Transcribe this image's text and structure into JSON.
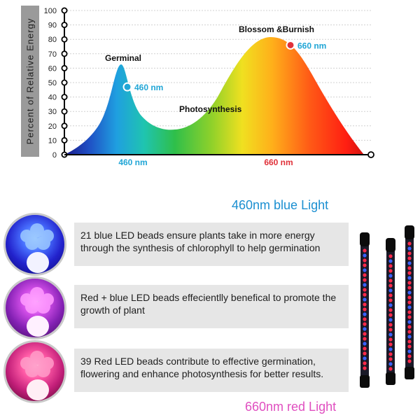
{
  "chart_data": {
    "type": "area",
    "ylabel": "Percent of Relative Energy",
    "yticks": [
      0,
      10,
      20,
      30,
      40,
      50,
      60,
      70,
      80,
      90,
      100
    ],
    "ylim": [
      0,
      100
    ],
    "xticks": [
      "460 nm",
      "660 nm"
    ],
    "points": [
      {
        "label": "460 nm",
        "value": 47,
        "color": "#21a6d6"
      },
      {
        "label": "660 nm",
        "value": 76,
        "color": "#e0323a"
      }
    ],
    "peaks": [
      {
        "name": "Germinal",
        "value": 62
      },
      {
        "name": "Photosynthesis",
        "value": 18
      },
      {
        "name": "Blossom &Burnish",
        "value": 82
      }
    ],
    "annotations": [
      "Germinal",
      "Photosynthesis",
      "Blossom &Burnish"
    ]
  },
  "headings": {
    "blue": "460nm blue Light",
    "red": "660nm red Light"
  },
  "rows": [
    {
      "text": "21 blue LED beads ensure plants take in more energy through the synthesis of chlorophyll to help germination"
    },
    {
      "text": "Red + blue LED beads effecientlly benefical to promote the growth of  plant"
    },
    {
      "text": "39 Red LED beads contribute to effective germination, flowering and enhance photosynthesis for better results."
    }
  ],
  "colors": {
    "blue_accent": "#1b8fd1",
    "red_accent": "#e04fc0",
    "point_blue": "#21a6d6",
    "point_red": "#e0323a"
  }
}
